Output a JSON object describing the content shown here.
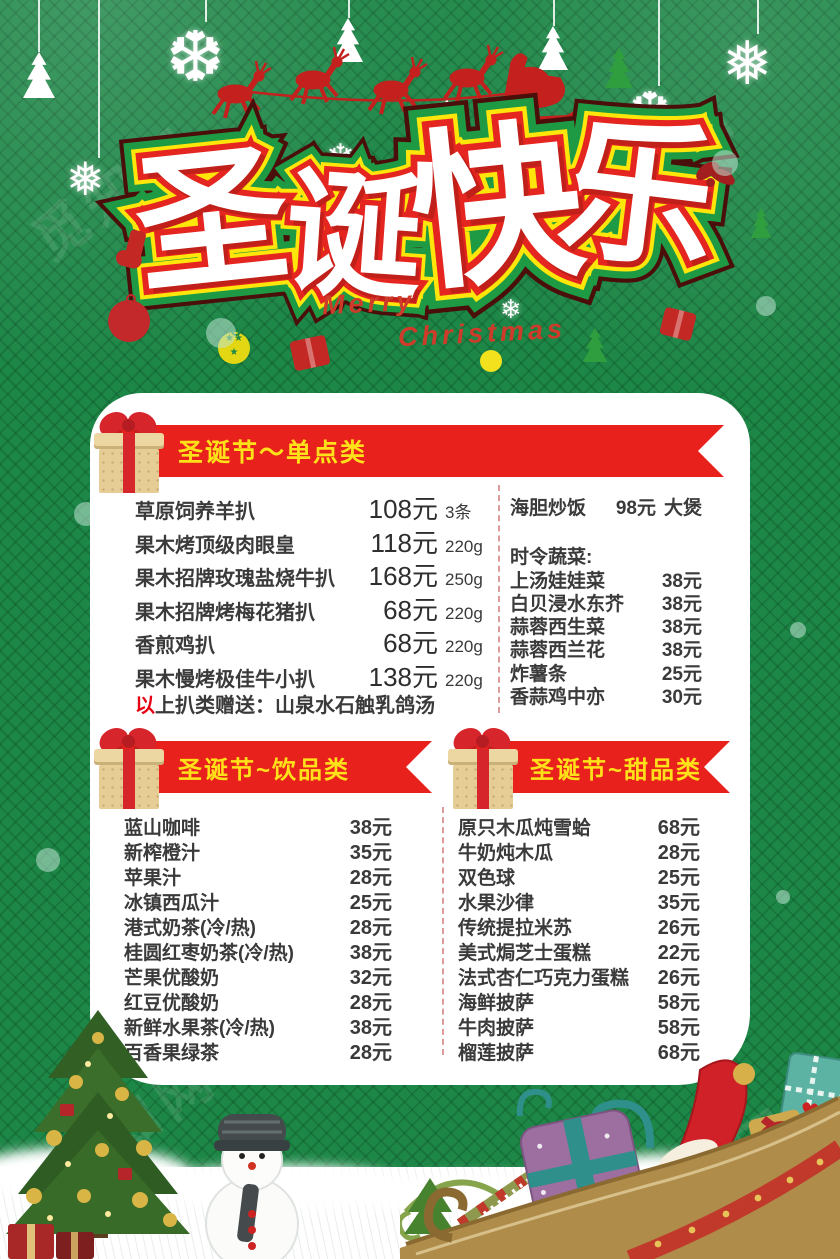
{
  "watermark": "觅知网",
  "header": {
    "title": "圣诞快乐",
    "subtitle_line1": "Merry",
    "subtitle_line2": "Christmas"
  },
  "colors": {
    "background_green": "#1d8747",
    "banner_red": "#e8211d",
    "banner_text_yellow": "#ffe11a",
    "note_highlight_red": "#e60012",
    "card_white": "#ffffff"
  },
  "sections": {
    "single": {
      "banner": "圣诞节～单点类",
      "left_items": [
        {
          "name": "草原饲养羊扒",
          "price": "108元",
          "qual": "3条"
        },
        {
          "name": "果木烤顶级肉眼皇",
          "price": "118元",
          "qual": "220g"
        },
        {
          "name": "果木招牌玫瑰盐烧牛扒",
          "price": "168元",
          "qual": "250g"
        },
        {
          "name": "果木招牌烤梅花猪扒",
          "price": "68元",
          "qual": "220g"
        },
        {
          "name": "香煎鸡扒",
          "price": "68元",
          "qual": "220g"
        },
        {
          "name": "果木慢烤极佳牛小扒",
          "price": "138元",
          "qual": "220g"
        }
      ],
      "note_highlight": "以",
      "note_rest": "上扒类赠送：山泉水石触乳鸽汤",
      "right_items": [
        {
          "name": "海胆炒饭",
          "price": "98元",
          "qual": "大煲"
        },
        {
          "gap": true
        },
        {
          "name": "时令蔬菜:",
          "header": true
        },
        {
          "name": "上汤娃娃菜",
          "price": "38元"
        },
        {
          "name": "白贝浸水东芥",
          "price": "38元"
        },
        {
          "name": "蒜蓉西生菜",
          "price": "38元"
        },
        {
          "name": "蒜蓉西兰花",
          "price": "38元"
        },
        {
          "name": "炸薯条",
          "price": "25元"
        },
        {
          "name": "香蒜鸡中亦",
          "price": "30元"
        }
      ]
    },
    "drinks": {
      "banner": "圣诞节~饮品类",
      "items": [
        {
          "name": "蓝山咖啡",
          "price": "38元"
        },
        {
          "name": "新榨橙汁",
          "price": "35元"
        },
        {
          "name": "苹果汁",
          "price": "28元"
        },
        {
          "name": "冰镇西瓜汁",
          "price": "25元"
        },
        {
          "name": "港式奶茶(冷/热)",
          "price": "28元"
        },
        {
          "name": "桂圆红枣奶茶(冷/热)",
          "price": "38元"
        },
        {
          "name": "芒果优酸奶",
          "price": "32元"
        },
        {
          "name": "红豆优酸奶",
          "price": "28元"
        },
        {
          "name": "新鲜水果茶(冷/热)",
          "price": "38元"
        },
        {
          "name": "百香果绿茶",
          "price": "28元"
        }
      ]
    },
    "desserts": {
      "banner": "圣诞节~甜品类",
      "items": [
        {
          "name": "原只木瓜炖雪蛤",
          "price": "68元"
        },
        {
          "name": "牛奶炖木瓜",
          "price": "28元"
        },
        {
          "name": "双色球",
          "price": "25元"
        },
        {
          "name": "水果沙律",
          "price": "35元"
        },
        {
          "name": "传统提拉米苏",
          "price": "26元"
        },
        {
          "name": "美式焗芝士蛋糕",
          "price": "22元"
        },
        {
          "name": "法式杏仁巧克力蛋糕",
          "price": "26元"
        },
        {
          "name": "海鲜披萨",
          "price": "58元"
        },
        {
          "name": "牛肉披萨",
          "price": "58元"
        },
        {
          "name": "榴莲披萨",
          "price": "68元"
        }
      ]
    }
  }
}
